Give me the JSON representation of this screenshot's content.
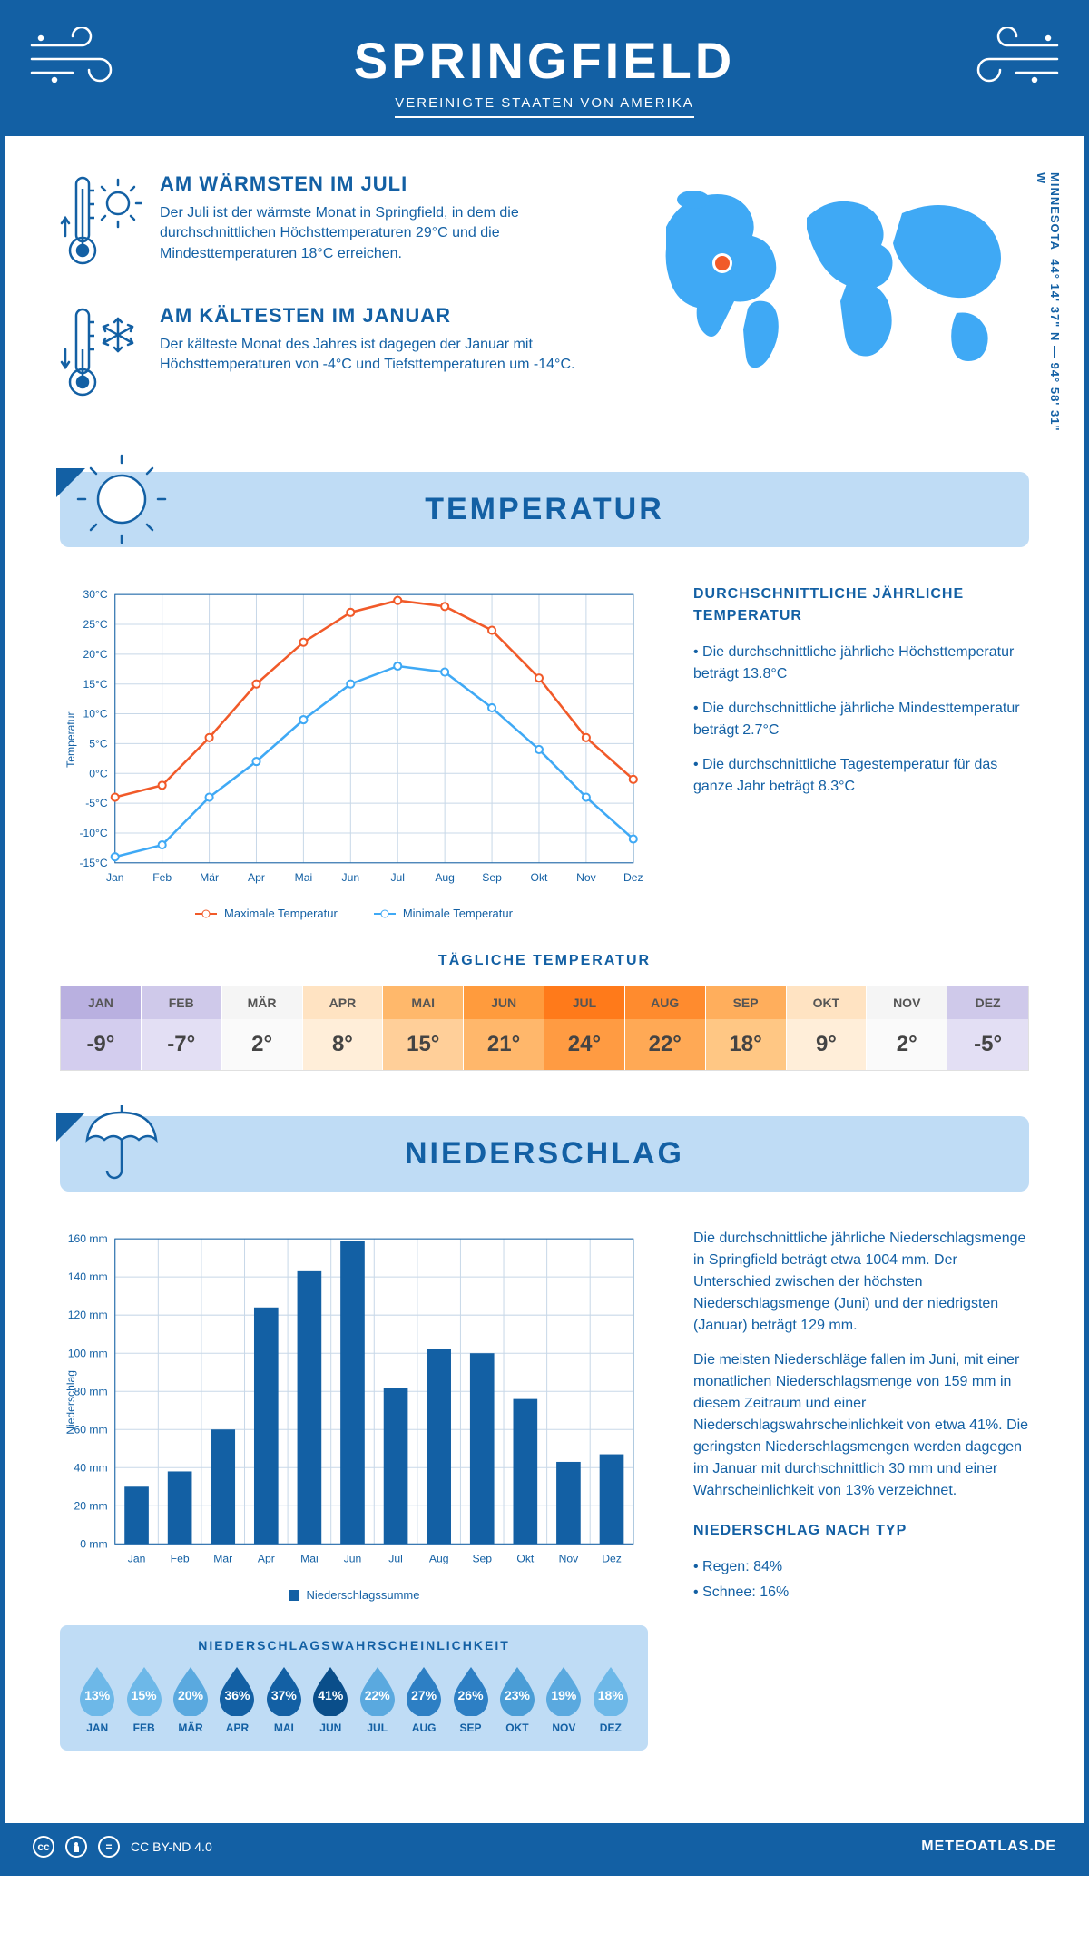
{
  "header": {
    "title": "SPRINGFIELD",
    "subtitle": "VEREINIGTE STAATEN VON AMERIKA"
  },
  "coords": {
    "text": "44° 14' 37\" N — 94° 58' 31\" W",
    "state": "MINNESOTA"
  },
  "facts": {
    "warm": {
      "title": "AM WÄRMSTEN IM JULI",
      "body": "Der Juli ist der wärmste Monat in Springfield, in dem die durchschnittlichen Höchsttemperaturen 29°C und die Mindesttemperaturen 18°C erreichen."
    },
    "cold": {
      "title": "AM KÄLTESTEN IM JANUAR",
      "body": "Der kälteste Monat des Jahres ist dagegen der Januar mit Höchsttemperaturen von -4°C und Tiefsttemperaturen um -14°C."
    }
  },
  "sections": {
    "temperature": "TEMPERATUR",
    "precipitation": "NIEDERSCHLAG"
  },
  "temperature": {
    "annual_title": "DURCHSCHNITTLICHE JÄHRLICHE TEMPERATUR",
    "bullets": [
      "• Die durchschnittliche jährliche Höchsttemperatur beträgt 13.8°C",
      "• Die durchschnittliche jährliche Mindesttemperatur beträgt 2.7°C",
      "• Die durchschnittliche Tagestemperatur für das ganze Jahr beträgt 8.3°C"
    ],
    "chart": {
      "ylabel": "Temperatur",
      "ymin": -15,
      "ymax": 30,
      "ystep": 5,
      "months": [
        "Jan",
        "Feb",
        "Mär",
        "Apr",
        "Mai",
        "Jun",
        "Jul",
        "Aug",
        "Sep",
        "Okt",
        "Nov",
        "Dez"
      ],
      "max_series": {
        "label": "Maximale Temperatur",
        "color": "#f15a29",
        "values": [
          -4,
          -2,
          6,
          15,
          22,
          27,
          29,
          28,
          24,
          16,
          6,
          -1
        ]
      },
      "min_series": {
        "label": "Minimale Temperatur",
        "color": "#3fa9f5",
        "values": [
          -14,
          -12,
          -4,
          2,
          9,
          15,
          18,
          17,
          11,
          4,
          -4,
          -11
        ]
      },
      "grid_color": "#c8d8e8",
      "axis_color": "#1360a4",
      "label_fontsize": 12
    },
    "daily_title": "TÄGLICHE TEMPERATUR",
    "daily": {
      "months": [
        "JAN",
        "FEB",
        "MÄR",
        "APR",
        "MAI",
        "JUN",
        "JUL",
        "AUG",
        "SEP",
        "OKT",
        "NOV",
        "DEZ"
      ],
      "values": [
        "-9°",
        "-7°",
        "2°",
        "8°",
        "15°",
        "21°",
        "24°",
        "22°",
        "18°",
        "9°",
        "2°",
        "-5°"
      ],
      "head_colors": [
        "#b9b0e0",
        "#cfc9ea",
        "#f5f5f5",
        "#ffe3c2",
        "#ffb86b",
        "#ff9b3d",
        "#ff7a1a",
        "#ff8b2e",
        "#ffae5c",
        "#ffe3c2",
        "#f5f5f5",
        "#cfc9ea"
      ],
      "body_colors": [
        "#d3cdee",
        "#e3dff4",
        "#fafafa",
        "#ffeed9",
        "#ffcf99",
        "#ffb76b",
        "#ff9b42",
        "#ffa955",
        "#ffc784",
        "#ffeed9",
        "#fafafa",
        "#e3dff4"
      ]
    }
  },
  "precipitation": {
    "chart": {
      "ylabel": "Niederschlag",
      "ymax": 160,
      "ystep": 20,
      "months": [
        "Jan",
        "Feb",
        "Mär",
        "Apr",
        "Mai",
        "Jun",
        "Jul",
        "Aug",
        "Sep",
        "Okt",
        "Nov",
        "Dez"
      ],
      "values": [
        30,
        38,
        60,
        124,
        143,
        159,
        82,
        102,
        100,
        76,
        43,
        47
      ],
      "bar_color": "#1360a4",
      "grid_color": "#c8d8e8",
      "legend": "Niederschlagssumme",
      "label_fontsize": 12
    },
    "text": {
      "p1": "Die durchschnittliche jährliche Niederschlagsmenge in Springfield beträgt etwa 1004 mm. Der Unterschied zwischen der höchsten Niederschlagsmenge (Juni) und der niedrigsten (Januar) beträgt 129 mm.",
      "p2": "Die meisten Niederschläge fallen im Juni, mit einer monatlichen Niederschlagsmenge von 159 mm in diesem Zeitraum und einer Niederschlagswahrscheinlichkeit von etwa 41%. Die geringsten Niederschlagsmengen werden dagegen im Januar mit durchschnittlich 30 mm und einer Wahrscheinlichkeit von 13% verzeichnet.",
      "type_title": "NIEDERSCHLAG NACH TYP",
      "type_bullets": [
        "• Regen: 84%",
        "• Schnee: 16%"
      ]
    },
    "probability": {
      "title": "NIEDERSCHLAGSWAHRSCHEINLICHKEIT",
      "months": [
        "JAN",
        "FEB",
        "MÄR",
        "APR",
        "MAI",
        "JUN",
        "JUL",
        "AUG",
        "SEP",
        "OKT",
        "NOV",
        "DEZ"
      ],
      "values": [
        "13%",
        "15%",
        "20%",
        "36%",
        "37%",
        "41%",
        "22%",
        "27%",
        "26%",
        "23%",
        "19%",
        "18%"
      ],
      "colors": [
        "#6db8e8",
        "#6db8e8",
        "#5aa9df",
        "#1360a4",
        "#1360a4",
        "#0a4e8a",
        "#5aa9df",
        "#2d7fc4",
        "#2d7fc4",
        "#4a9dd6",
        "#5aa9df",
        "#6db8e8"
      ]
    }
  },
  "footer": {
    "license": "CC BY-ND 4.0",
    "site": "METEOATLAS.DE"
  },
  "colors": {
    "primary": "#1360a4",
    "banner": "#bfdcf5"
  }
}
